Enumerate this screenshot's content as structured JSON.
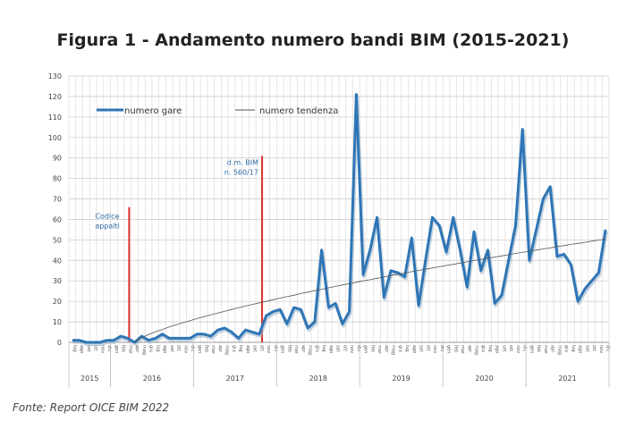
{
  "title": "Figura 1 - Andamento numero bandi BIM (2015-2021)",
  "source": "Fonte: Report OICE BIM 2022",
  "chart_data": {
    "type": "line",
    "title": "Figura 1 - Andamento numero bandi BIM (2015-2021)",
    "xlabel": "",
    "ylabel": "",
    "ylim": [
      0,
      130
    ],
    "yticks": [
      0,
      10,
      20,
      30,
      40,
      50,
      60,
      70,
      80,
      90,
      100,
      110,
      120,
      130
    ],
    "grid": true,
    "legend_position": "top",
    "years": [
      {
        "label": "2015",
        "months": [
          "lug",
          "ago",
          "set",
          "ott",
          "nov",
          "dic"
        ]
      },
      {
        "label": "2016",
        "months": [
          "gen",
          "feb",
          "mar",
          "apr",
          "mag",
          "giu",
          "lug",
          "ago",
          "set",
          "ott",
          "nov",
          "dic"
        ]
      },
      {
        "label": "2017",
        "months": [
          "gen",
          "feb",
          "mar",
          "apr",
          "mag",
          "giu",
          "lug",
          "ago",
          "set",
          "ott",
          "nov",
          "dic"
        ]
      },
      {
        "label": "2018",
        "months": [
          "gen",
          "feb",
          "mar",
          "apr",
          "mag",
          "giu",
          "lug",
          "ago",
          "set",
          "ott",
          "nov",
          "dic"
        ]
      },
      {
        "label": "2019",
        "months": [
          "gen",
          "feb",
          "mar",
          "apr",
          "mag",
          "giu",
          "lug",
          "ago",
          "set",
          "ott",
          "nov",
          "dic"
        ]
      },
      {
        "label": "2020",
        "months": [
          "gen",
          "feb",
          "mar",
          "apr",
          "mag",
          "giu",
          "lug",
          "ago",
          "set",
          "ott",
          "nov",
          "dic"
        ]
      },
      {
        "label": "2021",
        "months": [
          "gen",
          "feb",
          "mar",
          "apr",
          "mag",
          "giu",
          "lug",
          "ago",
          "set",
          "ott",
          "nov",
          "dic"
        ]
      }
    ],
    "series": [
      {
        "name": "numero gare",
        "color": "#2e75b6",
        "values": [
          1,
          1,
          0,
          0,
          0,
          1,
          1,
          3,
          2,
          0,
          3,
          1,
          2,
          4,
          2,
          2,
          2,
          2,
          4,
          4,
          3,
          6,
          7,
          5,
          2,
          6,
          5,
          4,
          13,
          15,
          16,
          9,
          17,
          16,
          7,
          10,
          45,
          17,
          19,
          9,
          15,
          121,
          33,
          45,
          61,
          22,
          35,
          34,
          32,
          51,
          18,
          40,
          61,
          57,
          44,
          61,
          45,
          27,
          54,
          35,
          45,
          19,
          23,
          40,
          57,
          104,
          40,
          55,
          70,
          76,
          42,
          43,
          38,
          20,
          26,
          30,
          34,
          55
        ]
      },
      {
        "name": "numero tendenza",
        "color": "#555555",
        "values": [
          null,
          null,
          null,
          null,
          null,
          null,
          null,
          null,
          null,
          0,
          2.3,
          3.8,
          5.1,
          6.3,
          7.5,
          8.6,
          9.6,
          10.6,
          11.6,
          12.5,
          13.4,
          14.3,
          15.2,
          16.0,
          16.9,
          17.7,
          18.5,
          19.3,
          20.0,
          20.8,
          21.6,
          22.3,
          23.0,
          23.8,
          24.5,
          25.2,
          25.9,
          26.6,
          27.3,
          28.0,
          28.6,
          29.3,
          30.0,
          30.6,
          31.3,
          31.9,
          32.6,
          33.2,
          33.8,
          34.5,
          35.1,
          35.7,
          36.3,
          36.9,
          37.5,
          38.1,
          38.7,
          39.3,
          39.9,
          40.5,
          41.1,
          41.6,
          42.2,
          42.8,
          43.4,
          43.9,
          44.5,
          45.0,
          45.6,
          46.1,
          46.7,
          47.2,
          47.8,
          48.3,
          48.8,
          49.4,
          49.9,
          50.4
        ]
      }
    ],
    "annotations": [
      {
        "label_lines": [
          "Codice",
          "appalti"
        ],
        "month_index": 8.7,
        "height": 66,
        "color": "#e03030"
      },
      {
        "label_lines": [
          "d.m. BIM",
          "n. 560/17"
        ],
        "month_index": 27.9,
        "height": 91,
        "color": "#e03030"
      }
    ]
  }
}
